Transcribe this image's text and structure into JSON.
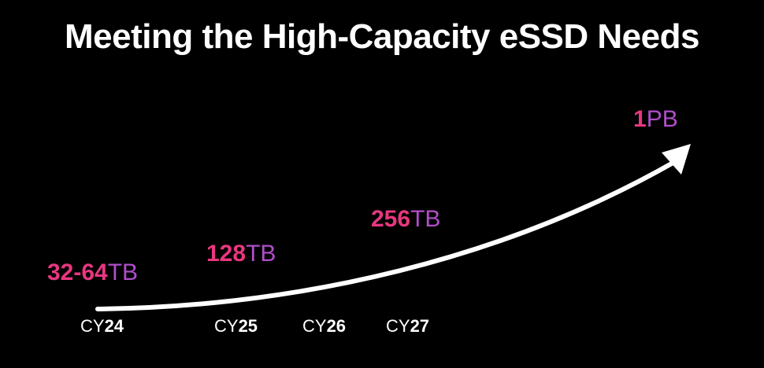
{
  "title": "Meeting the High-Capacity eSSD Needs",
  "colors": {
    "background": "#000000",
    "text": "#ffffff",
    "capacity_number": "#e8377f",
    "capacity_unit": "#b04ec9",
    "arrow": "#ffffff"
  },
  "capacities": [
    {
      "number": "32-64",
      "unit": "TB"
    },
    {
      "number": "128",
      "unit": "TB"
    },
    {
      "number": "256",
      "unit": "TB"
    },
    {
      "number": "1",
      "unit": "PB"
    }
  ],
  "years": [
    {
      "prefix": "CY",
      "digits": "24"
    },
    {
      "prefix": "CY",
      "digits": "25"
    },
    {
      "prefix": "CY",
      "digits": "26"
    },
    {
      "prefix": "CY",
      "digits": "27"
    }
  ],
  "arrow_icon": "growth-curve-arrow"
}
